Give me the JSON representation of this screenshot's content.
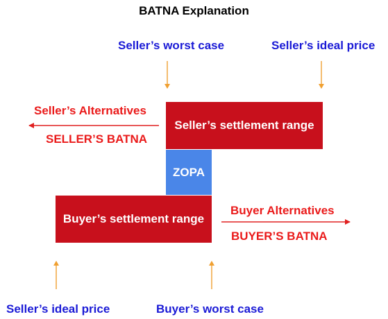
{
  "title": "BATNA Explanation",
  "top_labels": {
    "seller_worst_case": "Seller’s worst case",
    "seller_ideal_price": "Seller’s ideal price"
  },
  "bottom_labels": {
    "seller_ideal_price": "Seller’s ideal price",
    "buyer_worst_case": "Buyer’s worst case"
  },
  "seller": {
    "alternatives": "Seller’s Alternatives",
    "batna": "SELLER’S BATNA",
    "range": "Seller’s settlement range"
  },
  "zopa": "ZOPA",
  "buyer": {
    "alternatives": "Buyer Alternatives",
    "batna": "BUYER’S BATNA",
    "range": "Buyer’s settlement range"
  },
  "colors": {
    "label_blue": "#1a1ad6",
    "label_red": "#ea1a1a",
    "range_box": "#c8101c",
    "zopa_box": "#4a86e8",
    "arrow_orange": "#f0a030",
    "arrow_red": "#e02020"
  }
}
